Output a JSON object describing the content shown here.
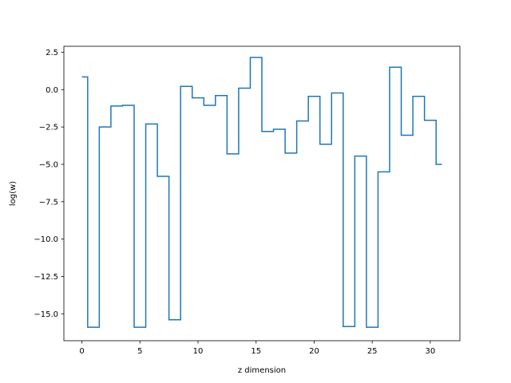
{
  "chart_data": {
    "type": "line",
    "drawstyle": "steps-mid",
    "title": "",
    "xlabel": "z dimension",
    "ylabel": "log(w)",
    "xlim": [
      -1.55,
      32.55
    ],
    "ylim": [
      -16.8,
      2.9
    ],
    "xticks": [
      0,
      5,
      10,
      15,
      20,
      25,
      30
    ],
    "xtick_labels": [
      "0",
      "5",
      "10",
      "15",
      "20",
      "25",
      "30"
    ],
    "yticks": [
      2.5,
      0.0,
      -2.5,
      -5.0,
      -7.5,
      -10.0,
      -12.5,
      -15.0
    ],
    "ytick_labels": [
      "2.5",
      "0.0",
      "−2.5",
      "−5.0",
      "−7.5",
      "−10.0",
      "−12.5",
      "−15.0"
    ],
    "grid": false,
    "legend": "none",
    "series": [
      {
        "color": "#1f77b4",
        "x": [
          0,
          1,
          2,
          3,
          4,
          5,
          6,
          7,
          8,
          9,
          10,
          11,
          12,
          13,
          14,
          15,
          16,
          17,
          18,
          19,
          20,
          21,
          22,
          23,
          24,
          25,
          26,
          27,
          28,
          29,
          30,
          31
        ],
        "y": [
          0.85,
          -15.9,
          -2.5,
          -1.1,
          -1.05,
          -15.9,
          -2.3,
          -5.8,
          -15.4,
          0.22,
          -0.55,
          -1.05,
          -0.4,
          -4.3,
          0.1,
          2.15,
          -2.8,
          -2.65,
          -4.25,
          -2.1,
          -0.45,
          -3.65,
          -0.22,
          -15.85,
          -4.45,
          -15.9,
          -5.5,
          1.5,
          -3.05,
          -0.45,
          -2.05,
          -5.0
        ]
      }
    ]
  }
}
